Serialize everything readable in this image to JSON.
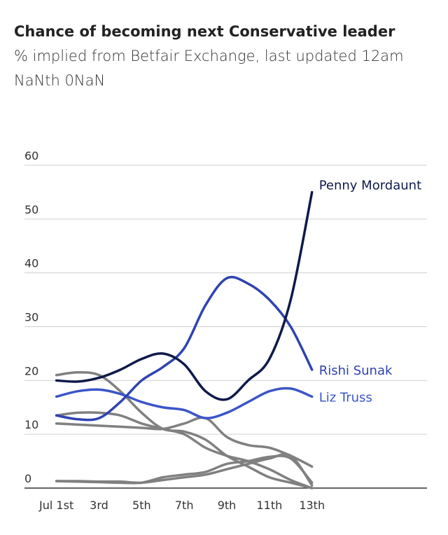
{
  "chart_data": {
    "type": "line",
    "title": "Chance of becoming next Conservative leader",
    "subtitle": [
      "% implied from Betfair Exchange, last updated 12am",
      "NaNth 0NaN"
    ],
    "x": [
      1,
      2,
      3,
      4,
      5,
      6,
      7,
      8,
      9,
      10,
      11,
      12,
      13
    ],
    "xlim": [
      -0.5,
      18.4
    ],
    "xticks": [
      {
        "value": 1,
        "label": "Jul 1st"
      },
      {
        "value": 3,
        "label": "3rd"
      },
      {
        "value": 5,
        "label": "5th"
      },
      {
        "value": 7,
        "label": "7th"
      },
      {
        "value": 9,
        "label": "9th"
      },
      {
        "value": 11,
        "label": "11th"
      },
      {
        "value": 13,
        "label": "13th"
      }
    ],
    "ylim": [
      0,
      60
    ],
    "yticks": [
      0,
      10,
      20,
      30,
      40,
      50,
      60
    ],
    "grid": true,
    "series": [
      {
        "color": "#808080",
        "values": [
          21,
          21.5,
          21,
          18,
          14,
          11,
          10.5,
          9,
          6,
          4,
          2,
          1,
          0
        ]
      },
      {
        "color": "#808080",
        "values": [
          13.5,
          14,
          14,
          13.5,
          12,
          11,
          10,
          7.5,
          6,
          5,
          3.5,
          1.5,
          0
        ]
      },
      {
        "color": "#808080",
        "values": [
          12,
          11.8,
          11.6,
          11.4,
          11.2,
          11,
          12,
          13,
          9.5,
          8,
          7.5,
          6,
          4
        ]
      },
      {
        "color": "#808080",
        "values": [
          1.3,
          1.2,
          1.1,
          1,
          1,
          2,
          2.5,
          3,
          4.5,
          5,
          5.8,
          5.5,
          1
        ]
      },
      {
        "color": "#808080",
        "values": [
          1.3,
          1.3,
          1.2,
          1.2,
          1,
          1.5,
          2,
          2.5,
          3.5,
          4.5,
          5.5,
          6,
          0.5
        ]
      },
      {
        "name": "Liz Truss",
        "color": "#3b55c8",
        "values": [
          17,
          18,
          18.3,
          17.5,
          16,
          15,
          14.5,
          13,
          14,
          16,
          18,
          18.5,
          17
        ]
      },
      {
        "name": "Rishi Sunak",
        "color": "#2f43b0",
        "values": [
          13.5,
          12.8,
          13,
          16,
          20,
          22.5,
          26,
          34,
          39,
          38,
          35,
          30,
          22
        ]
      },
      {
        "name": "Penny Mordaunt",
        "color": "#0f1a4a",
        "values": [
          20,
          19.8,
          20.5,
          22,
          24,
          25,
          23,
          18,
          16.5,
          20,
          24,
          35,
          55
        ]
      }
    ]
  }
}
